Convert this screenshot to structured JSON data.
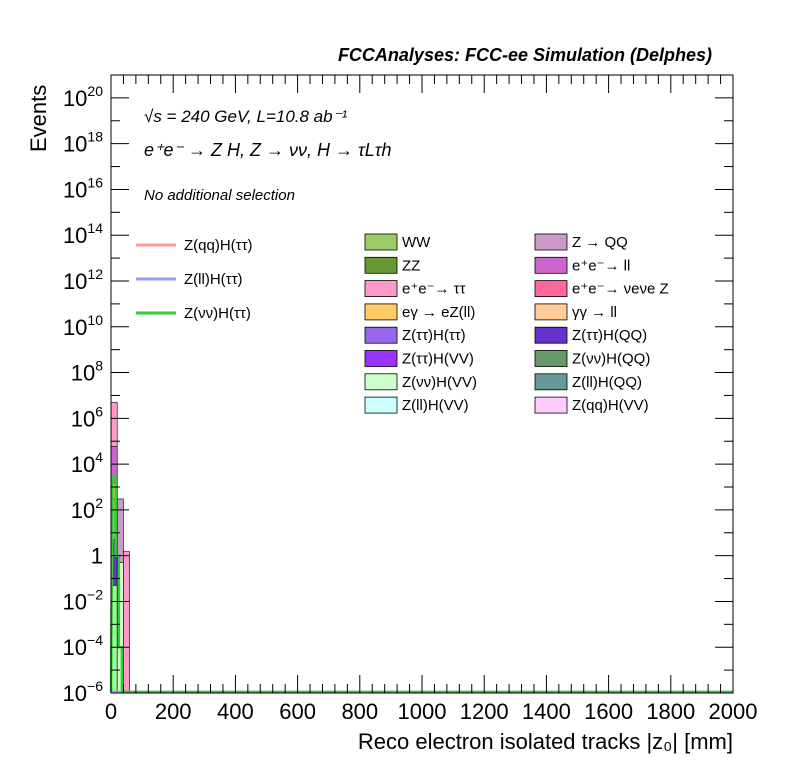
{
  "chart_data": {
    "type": "bar",
    "title": "FCCAnalyses: FCC-ee Simulation (Delphes)",
    "xlabel": "Reco electron isolated tracks |z₀| [mm]",
    "ylabel": "Events",
    "xlim": [
      0,
      2000
    ],
    "ylim": [
      1e-06,
      1e+21
    ],
    "yscale": "log",
    "x_ticks": [
      0,
      200,
      400,
      600,
      800,
      1000,
      1200,
      1400,
      1600,
      1800,
      2000
    ],
    "y_ticks": [
      {
        "base": "10",
        "exp": "20",
        "value": 1e+20
      },
      {
        "base": "10",
        "exp": "18",
        "value": 1e+18
      },
      {
        "base": "10",
        "exp": "16",
        "value": 1e+16
      },
      {
        "base": "10",
        "exp": "14",
        "value": 100000000000000.0
      },
      {
        "base": "10",
        "exp": "12",
        "value": 1000000000000.0
      },
      {
        "base": "10",
        "exp": "10",
        "value": 10000000000.0
      },
      {
        "base": "10",
        "exp": "8",
        "value": 100000000.0
      },
      {
        "base": "10",
        "exp": "6",
        "value": 1000000.0
      },
      {
        "base": "10",
        "exp": "4",
        "value": 10000.0
      },
      {
        "base": "10",
        "exp": "2",
        "value": 100
      },
      {
        "base": "1",
        "exp": "",
        "value": 1
      },
      {
        "base": "10",
        "exp": "−2",
        "value": 0.01
      },
      {
        "base": "10",
        "exp": "−4",
        "value": 0.0001
      },
      {
        "base": "10",
        "exp": "−6",
        "value": 1e-06
      }
    ],
    "annotations": {
      "energy": "√s = 240 GeV, L=10.8 ab⁻¹",
      "process": "e⁺e⁻ → Z H, Z → νν, H → τLτh",
      "selection": "No additional selection"
    },
    "stacked_bins": [
      {
        "x0": 0,
        "x1": 20,
        "total": 5000000,
        "color": "#ff99cc"
      },
      {
        "x0": 0,
        "x1": 20,
        "total": 60000,
        "color": "#cc66cc"
      },
      {
        "x0": 0,
        "x1": 20,
        "total": 1500,
        "color": "#ffcc66"
      },
      {
        "x0": 0,
        "x1": 20,
        "total": 300,
        "color": "#99cc66"
      },
      {
        "x0": 0,
        "x1": 20,
        "total": 5,
        "color": "#6633cc"
      },
      {
        "x0": 0,
        "x1": 20,
        "total": 0.05,
        "color": "#99ff99"
      },
      {
        "x0": 20,
        "x1": 40,
        "total": 300,
        "color": "#cc99cc"
      },
      {
        "x0": 20,
        "x1": 40,
        "total": 0.5,
        "color": "#ccffcc"
      },
      {
        "x0": 40,
        "x1": 60,
        "total": 1.5,
        "color": "#ff99cc"
      }
    ],
    "signal_series": [
      {
        "name": "Z(qq)H(ττ)",
        "color": "#ff9999",
        "values": [
          [
            0,
            1e-07
          ],
          [
            2000,
            1e-07
          ]
        ]
      },
      {
        "name": "Z(ll)H(ττ)",
        "color": "#9999ff",
        "values": [
          [
            0,
            1e-07
          ],
          [
            2000,
            1e-07
          ]
        ]
      },
      {
        "name": "Z(νν)H(ττ)",
        "color": "#33cc33",
        "values": [
          [
            0,
            1e-07
          ],
          [
            5,
            3000
          ],
          [
            15,
            3000
          ],
          [
            15,
            1
          ],
          [
            25,
            1
          ],
          [
            25,
            0.0001
          ],
          [
            35,
            0.0001
          ],
          [
            35,
            1e-07
          ],
          [
            2000,
            1e-07
          ]
        ]
      }
    ],
    "legend_signal": [
      {
        "label": "Z(qq)H(ττ)",
        "color": "#ff9999"
      },
      {
        "label": "Z(ll)H(ττ)",
        "color": "#9999ff"
      },
      {
        "label": "Z(νν)H(ττ)",
        "color": "#33cc33"
      }
    ],
    "legend_background": [
      {
        "label": "WW",
        "color": "#99cc66"
      },
      {
        "label": "Z → QQ",
        "color": "#cc99cc"
      },
      {
        "label": "ZZ",
        "color": "#669933"
      },
      {
        "label": "e⁺e⁻→ ll",
        "color": "#cc66cc"
      },
      {
        "label": "e⁺e⁻→ ττ",
        "color": "#ff99cc"
      },
      {
        "label": "e⁺e⁻→ νeνe Z",
        "color": "#ff6699"
      },
      {
        "label": "eγ → eZ(ll)",
        "color": "#ffcc66"
      },
      {
        "label": "γγ → ll",
        "color": "#ffcc99"
      },
      {
        "label": "Z(ττ)H(ττ)",
        "color": "#9966ee"
      },
      {
        "label": "Z(ττ)H(QQ)",
        "color": "#6633cc"
      },
      {
        "label": "Z(ττ)H(VV)",
        "color": "#9933ff"
      },
      {
        "label": "Z(νν)H(QQ)",
        "color": "#669966"
      },
      {
        "label": "Z(νν)H(VV)",
        "color": "#ccffcc"
      },
      {
        "label": "Z(ll)H(QQ)",
        "color": "#669999"
      },
      {
        "label": "Z(ll)H(VV)",
        "color": "#ccffff"
      },
      {
        "label": "Z(qq)H(VV)",
        "color": "#ffccff"
      }
    ],
    "grid": false,
    "legend_position": "upper-center"
  }
}
